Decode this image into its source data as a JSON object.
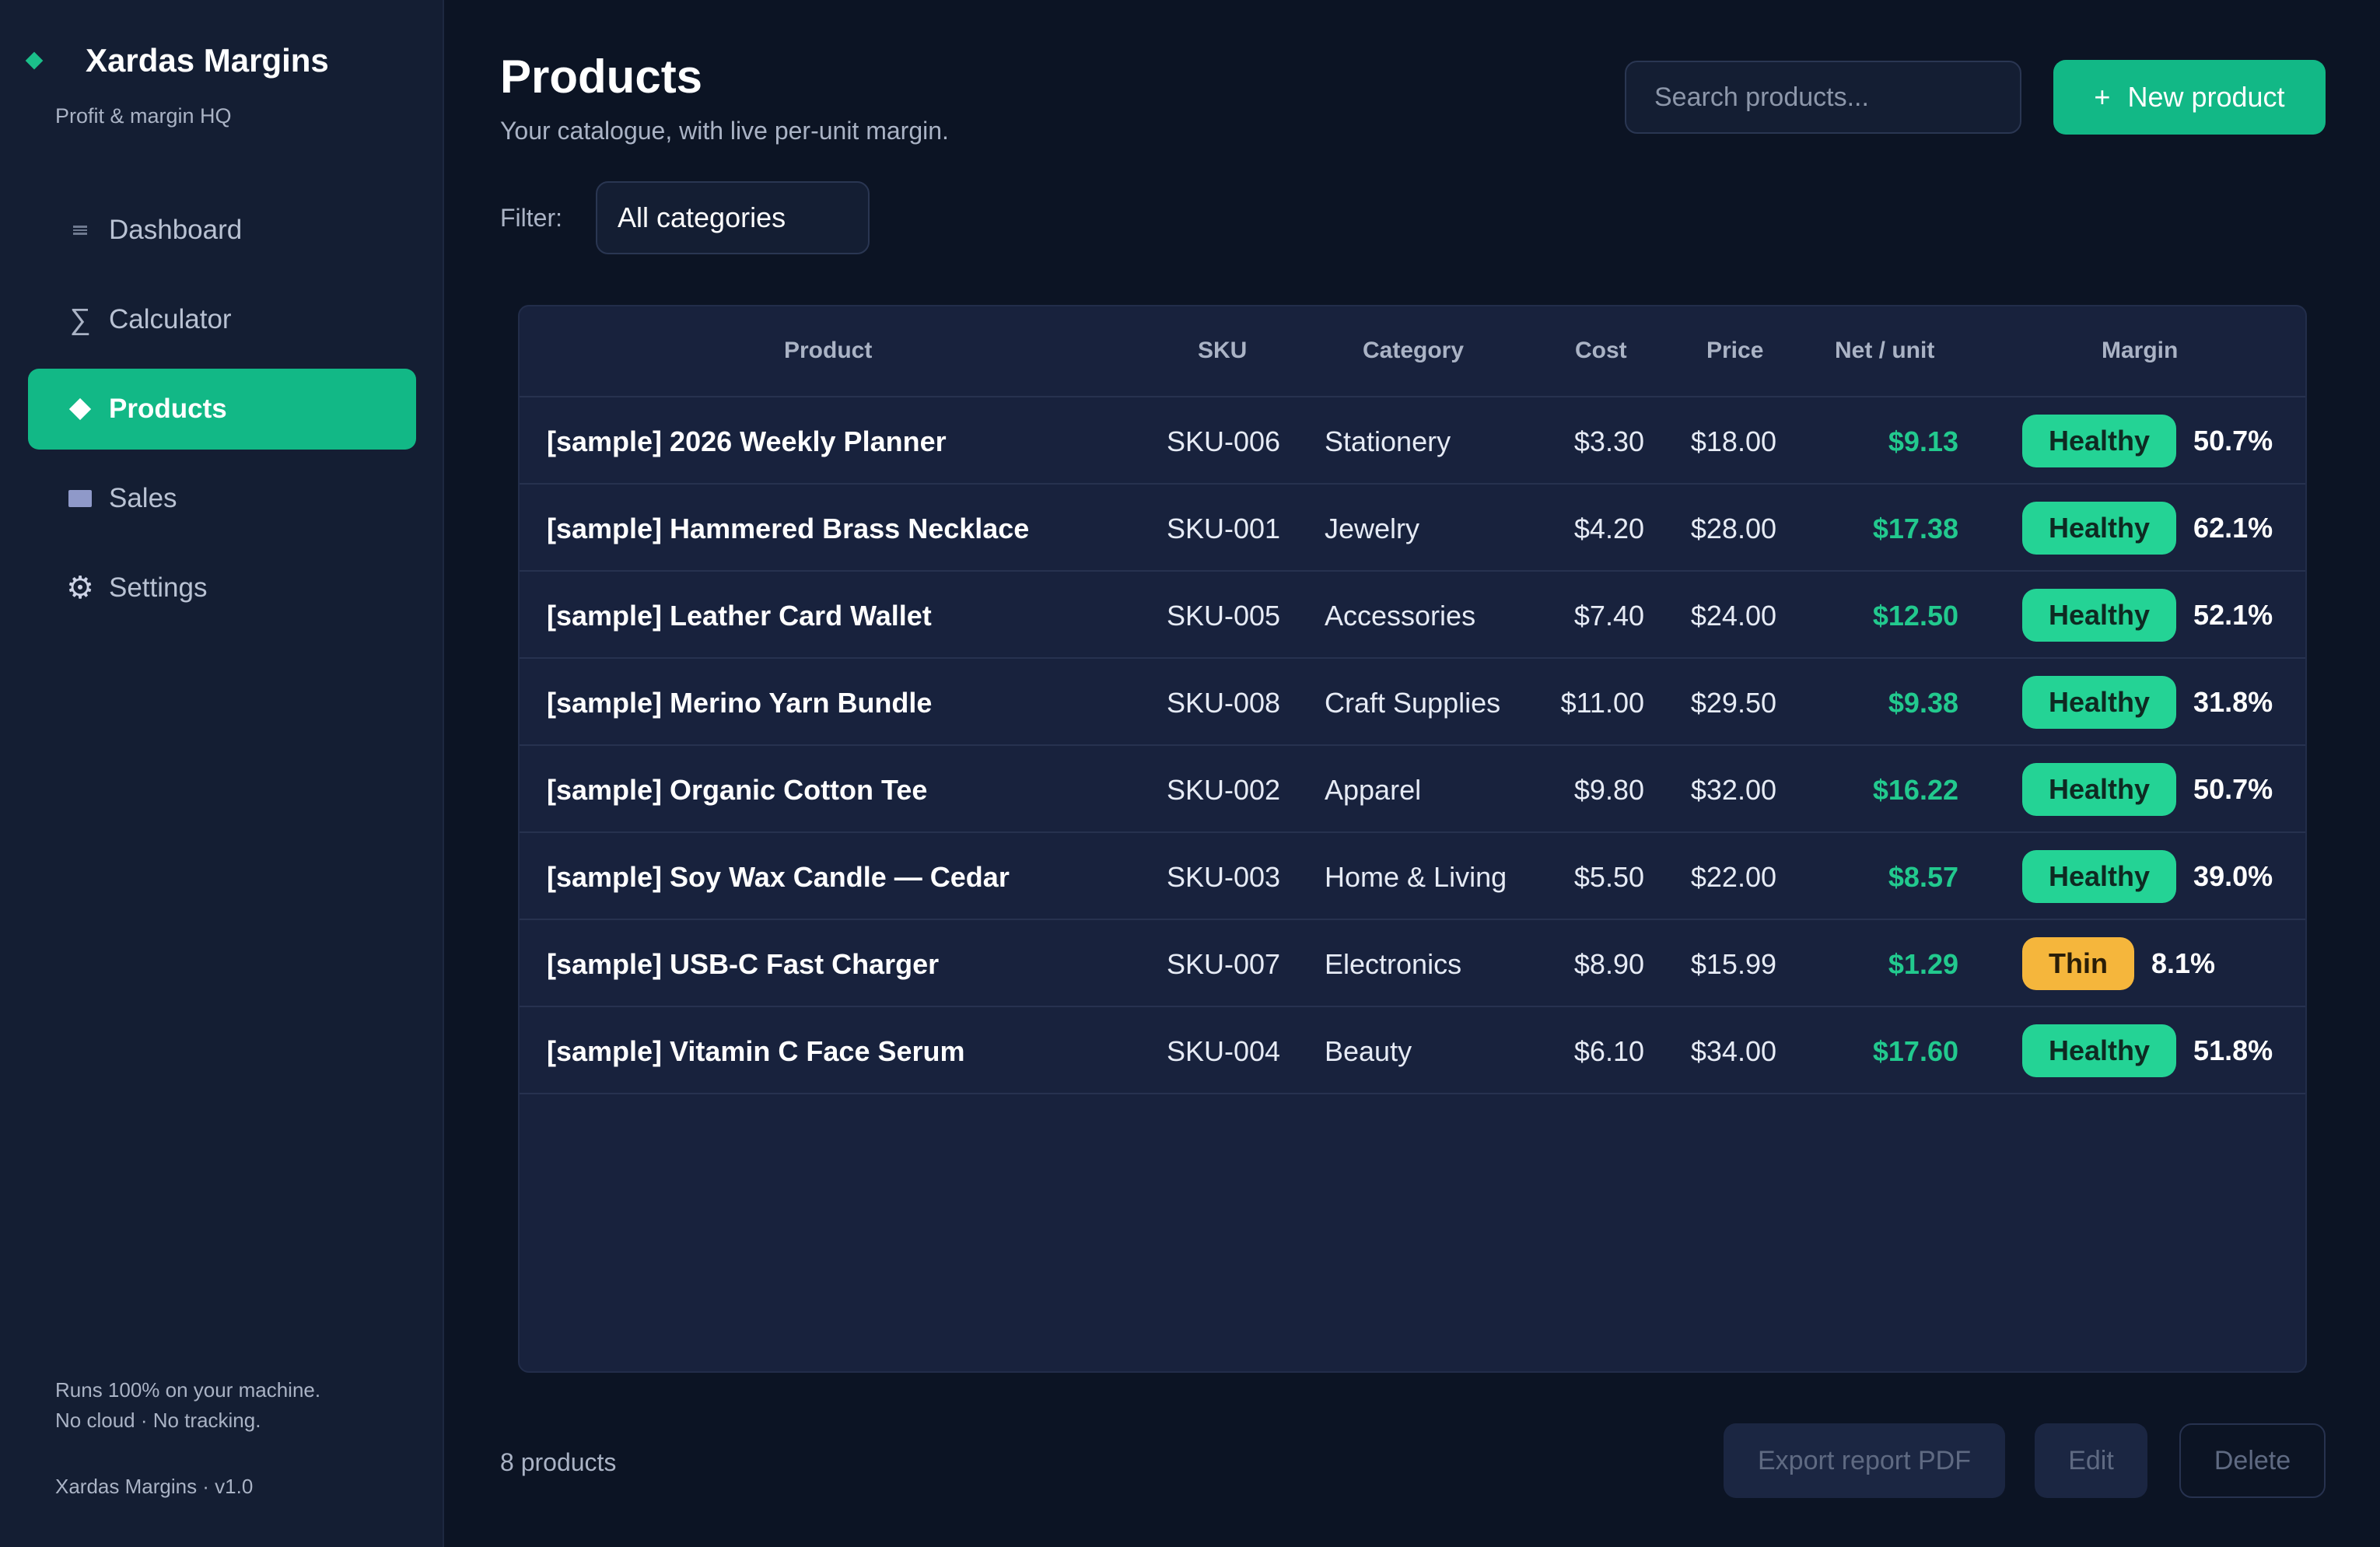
{
  "app": {
    "name": "Xardas Margins",
    "tagline": "Profit & margin HQ",
    "footer_line1": "Runs 100% on your machine.",
    "footer_line2": "No cloud · No tracking.",
    "version": "Xardas Margins · v1.0"
  },
  "sidebar": {
    "items": [
      {
        "label": "Dashboard",
        "icon": "dashboard-icon",
        "active": false
      },
      {
        "label": "Calculator",
        "icon": "sigma-icon",
        "active": false
      },
      {
        "label": "Products",
        "icon": "diamond-icon",
        "active": true
      },
      {
        "label": "Sales",
        "icon": "card-icon",
        "active": false
      },
      {
        "label": "Settings",
        "icon": "gear-icon",
        "active": false
      }
    ]
  },
  "header": {
    "title": "Products",
    "subtitle": "Your catalogue, with live per-unit margin.",
    "search_placeholder": "Search products...",
    "new_button": "New product"
  },
  "filter": {
    "label": "Filter:",
    "selected": "All categories"
  },
  "table": {
    "columns": [
      "Product",
      "SKU",
      "Category",
      "Cost",
      "Price",
      "Net / unit",
      "Margin"
    ],
    "rows": [
      {
        "name": "[sample] 2026 Weekly Planner",
        "sku": "SKU-006",
        "category": "Stationery",
        "cost": "$3.30",
        "price": "$18.00",
        "net": "$9.13",
        "status": "Healthy",
        "margin": "50.7%"
      },
      {
        "name": "[sample] Hammered Brass Necklace",
        "sku": "SKU-001",
        "category": "Jewelry",
        "cost": "$4.20",
        "price": "$28.00",
        "net": "$17.38",
        "status": "Healthy",
        "margin": "62.1%"
      },
      {
        "name": "[sample] Leather Card Wallet",
        "sku": "SKU-005",
        "category": "Accessories",
        "cost": "$7.40",
        "price": "$24.00",
        "net": "$12.50",
        "status": "Healthy",
        "margin": "52.1%"
      },
      {
        "name": "[sample] Merino Yarn Bundle",
        "sku": "SKU-008",
        "category": "Craft Supplies",
        "cost": "$11.00",
        "price": "$29.50",
        "net": "$9.38",
        "status": "Healthy",
        "margin": "31.8%"
      },
      {
        "name": "[sample] Organic Cotton Tee",
        "sku": "SKU-002",
        "category": "Apparel",
        "cost": "$9.80",
        "price": "$32.00",
        "net": "$16.22",
        "status": "Healthy",
        "margin": "50.7%"
      },
      {
        "name": "[sample] Soy Wax Candle — Cedar",
        "sku": "SKU-003",
        "category": "Home & Living",
        "cost": "$5.50",
        "price": "$22.00",
        "net": "$8.57",
        "status": "Healthy",
        "margin": "39.0%"
      },
      {
        "name": "[sample] USB-C Fast Charger",
        "sku": "SKU-007",
        "category": "Electronics",
        "cost": "$8.90",
        "price": "$15.99",
        "net": "$1.29",
        "status": "Thin",
        "margin": "8.1%"
      },
      {
        "name": "[sample] Vitamin C Face Serum",
        "sku": "SKU-004",
        "category": "Beauty",
        "cost": "$6.10",
        "price": "$34.00",
        "net": "$17.60",
        "status": "Healthy",
        "margin": "51.8%"
      }
    ]
  },
  "footer": {
    "count": "8 products",
    "export_button": "Export report PDF",
    "edit_button": "Edit",
    "delete_button": "Delete"
  },
  "colors": {
    "accent": "#12b886",
    "healthy": "#24d395",
    "thin": "#f5b63c",
    "background": "#0c1424",
    "panel": "#141e33"
  }
}
